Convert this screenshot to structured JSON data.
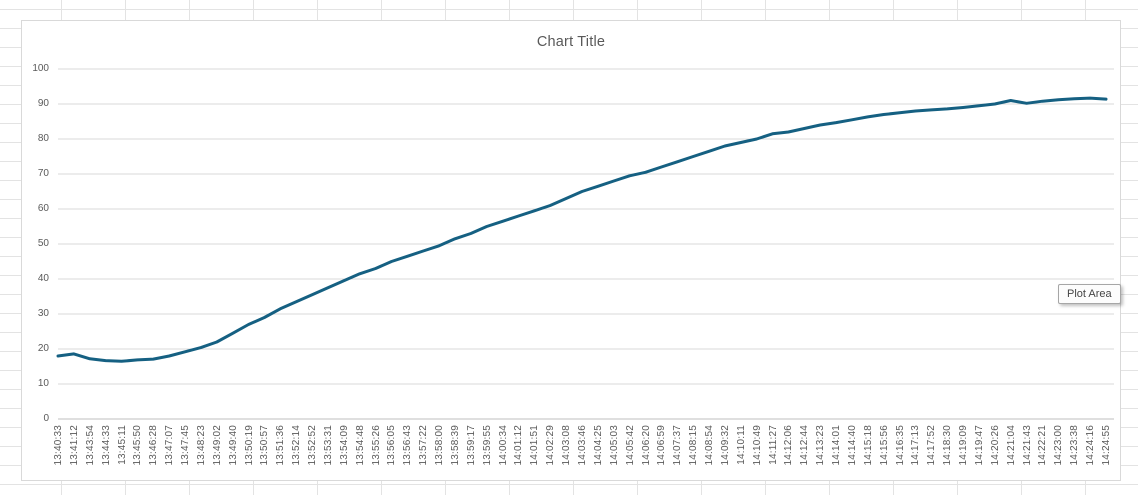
{
  "tooltip": {
    "label": "Plot Area"
  },
  "colors": {
    "series_line": "#156082",
    "gridline": "#d9d9d9",
    "axis_line": "#bfbfbf",
    "axis_text": "#595959",
    "title_text": "#595959",
    "sheet_gridline": "#e3e3e3"
  },
  "chart_data": {
    "type": "line",
    "title": "Chart Title",
    "xlabel": "",
    "ylabel": "",
    "legend": "none",
    "grid": "horizontal",
    "ylim": [
      0,
      100
    ],
    "yticks": [
      0,
      10,
      20,
      30,
      40,
      50,
      60,
      70,
      80,
      90,
      100
    ],
    "line_color": "#156082",
    "gridline_color": "#d9d9d9",
    "axis_line_color": "#bfbfbf",
    "categories": [
      "13:40:33",
      "13:41:12",
      "13:43:54",
      "13:44:33",
      "13:45:11",
      "13:45:50",
      "13:46:28",
      "13:47:07",
      "13:47:45",
      "13:48:23",
      "13:49:02",
      "13:49:40",
      "13:50:19",
      "13:50:57",
      "13:51:36",
      "13:52:14",
      "13:52:52",
      "13:53:31",
      "13:54:09",
      "13:54:48",
      "13:55:26",
      "13:56:05",
      "13:56:43",
      "13:57:22",
      "13:58:00",
      "13:58:39",
      "13:59:17",
      "13:59:55",
      "14:00:34",
      "14:01:12",
      "14:01:51",
      "14:02:29",
      "14:03:08",
      "14:03:46",
      "14:04:25",
      "14:05:03",
      "14:05:42",
      "14:06:20",
      "14:06:59",
      "14:07:37",
      "14:08:15",
      "14:08:54",
      "14:09:32",
      "14:10:11",
      "14:10:49",
      "14:11:27",
      "14:12:06",
      "14:12:44",
      "14:13:23",
      "14:14:01",
      "14:14:40",
      "14:15:18",
      "14:15:56",
      "14:16:35",
      "14:17:13",
      "14:17:52",
      "14:18:30",
      "14:19:09",
      "14:19:47",
      "14:20:26",
      "14:21:04",
      "14:21:43",
      "14:22:21",
      "14:23:00",
      "14:23:38",
      "14:24:16",
      "14:24:55"
    ],
    "values": [
      18,
      18.6,
      17.2,
      16.7,
      16.5,
      16.9,
      17.1,
      18,
      19.2,
      20.4,
      22,
      24.5,
      27,
      29,
      31.5,
      33.5,
      35.5,
      37.5,
      39.5,
      41.5,
      43,
      45,
      46.5,
      48,
      49.5,
      51.5,
      53,
      55,
      56.5,
      58,
      59.5,
      61,
      63,
      65,
      66.5,
      68,
      69.5,
      70.5,
      72,
      73.5,
      75,
      76.5,
      78,
      79,
      80,
      81.5,
      82,
      83,
      84,
      84.7,
      85.5,
      86.3,
      87,
      87.5,
      88,
      88.3,
      88.6,
      89,
      89.5,
      90,
      91,
      90.2,
      90.8,
      91.2,
      91.5,
      91.7,
      91.4
    ]
  }
}
